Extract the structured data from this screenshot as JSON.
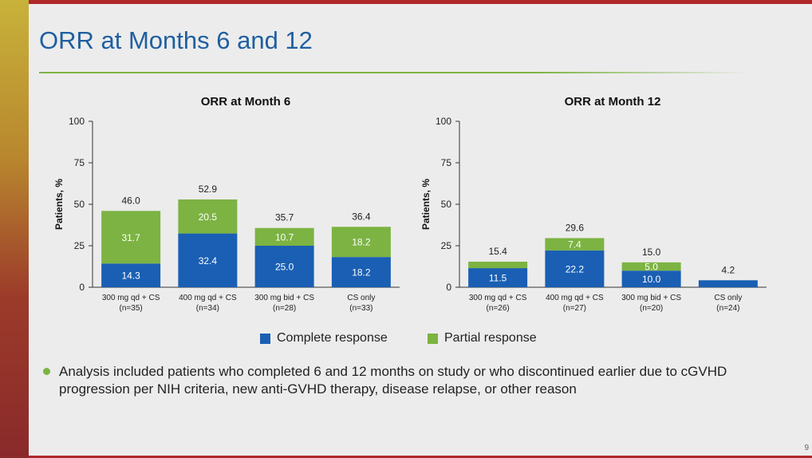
{
  "slide": {
    "title": "ORR at Months 6 and 12",
    "note": "Analysis included patients who completed 6 and 12 months on study or who discontinued earlier due to cGVHD progression per NIH criteria, new anti-GVHD therapy, disease relapse, or other reason",
    "page_number": "9"
  },
  "legend": {
    "complete_label": "Complete response",
    "partial_label": "Partial response"
  },
  "colors": {
    "complete": "#1a5fb4",
    "partial": "#7cb342",
    "title": "#1f5fa0"
  },
  "chart_data": [
    {
      "type": "bar",
      "stacked": true,
      "title": "ORR at Month 6",
      "ylabel": "Patients, %",
      "ylim": [
        0,
        100
      ],
      "yticks": [
        0,
        25,
        50,
        75,
        100
      ],
      "categories": [
        [
          "300 mg qd + CS",
          "(n=35)"
        ],
        [
          "400 mg qd + CS",
          "(n=34)"
        ],
        [
          "300 mg bid + CS",
          "(n=28)"
        ],
        [
          "CS only",
          "(n=33)"
        ]
      ],
      "series": [
        {
          "name": "Complete response",
          "values": [
            14.3,
            32.4,
            25.0,
            18.2
          ],
          "labels": [
            "14.3",
            "32.4",
            "25.0",
            "18.2"
          ]
        },
        {
          "name": "Partial response",
          "values": [
            31.7,
            20.5,
            10.7,
            18.2
          ],
          "labels": [
            "31.7",
            "20.5",
            "10.7",
            "18.2"
          ]
        }
      ],
      "totals": [
        "46.0",
        "52.9",
        "35.7",
        "36.4"
      ]
    },
    {
      "type": "bar",
      "stacked": true,
      "title": "ORR at Month 12",
      "ylabel": "Patients, %",
      "ylim": [
        0,
        100
      ],
      "yticks": [
        0,
        25,
        50,
        75,
        100
      ],
      "categories": [
        [
          "300 mg qd + CS",
          "(n=26)"
        ],
        [
          "400 mg qd + CS",
          "(n=27)"
        ],
        [
          "300 mg bid + CS",
          "(n=20)"
        ],
        [
          "CS only",
          "(n=24)"
        ]
      ],
      "series": [
        {
          "name": "Complete response",
          "values": [
            11.5,
            22.2,
            10.0,
            4.2
          ],
          "labels": [
            "11.5",
            "22.2",
            "10.0",
            ""
          ]
        },
        {
          "name": "Partial response",
          "values": [
            3.9,
            7.4,
            5.0,
            0
          ],
          "labels": [
            "",
            "7.4",
            "5.0",
            ""
          ]
        }
      ],
      "totals": [
        "15.4",
        "29.6",
        "15.0",
        "4.2"
      ]
    }
  ]
}
